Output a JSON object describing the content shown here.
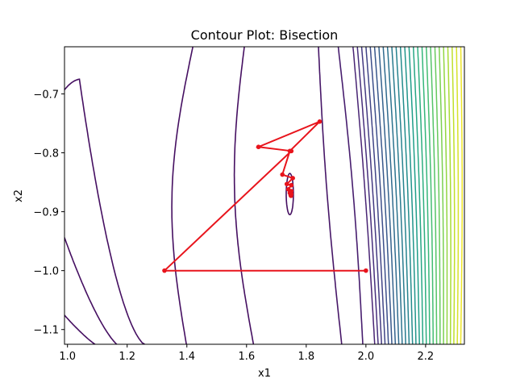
{
  "chart_data": {
    "type": "contour",
    "title": "Contour Plot: Bisection",
    "xlabel": "x1",
    "ylabel": "x2",
    "xlim": [
      0.99,
      2.33
    ],
    "ylim": [
      -1.125,
      -0.62
    ],
    "xticks": [
      1.0,
      1.2,
      1.4,
      1.6,
      1.8,
      2.0,
      2.2
    ],
    "xtick_labels": [
      "1.0",
      "1.2",
      "1.4",
      "1.6",
      "1.8",
      "2.0",
      "2.2"
    ],
    "yticks": [
      -0.7,
      -0.8,
      -0.9,
      -1.0,
      -1.1
    ],
    "ytick_labels": [
      "−0.7",
      "−0.8",
      "−0.9",
      "−1.0",
      "−1.1"
    ],
    "colormap": "viridis",
    "path_color": "#e8141c",
    "path": {
      "x": [
        2.0,
        1.325,
        1.75,
        1.64,
        1.845,
        1.745,
        1.72,
        1.755,
        1.735,
        1.75,
        1.74,
        1.75,
        1.745,
        1.75,
        1.748,
        1.749
      ],
      "y": [
        -1.0,
        -1.0,
        -0.797,
        -0.79,
        -0.747,
        -0.797,
        -0.837,
        -0.843,
        -0.853,
        -0.855,
        -0.862,
        -0.865,
        -0.868,
        -0.87,
        -0.872,
        -0.873
      ]
    },
    "grid": false,
    "legend": "none"
  }
}
